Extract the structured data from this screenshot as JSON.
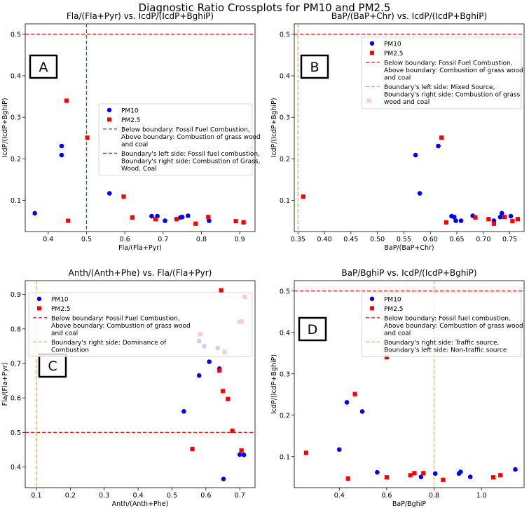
{
  "figure": {
    "title": "Diagnostic Ratio Crossplots for PM10 and PM2.5"
  },
  "colors": {
    "pm10": "#0000ff",
    "pm25": "#ff0000",
    "boundary_red": "#e8171d",
    "boundary_green": "#1a8a1a",
    "boundary_orange": "#f5a623"
  },
  "chart_data": [
    {
      "type": "scatter",
      "panel_label": "A",
      "title": "Fla/(Fla+Pyr) vs. IcdP/(IcdP+BghiP)",
      "xlabel": "Fla/(Fla+Pyr)",
      "ylabel": "IcdP/(IcdP+BghiP)",
      "xlim": [
        0.34,
        0.94
      ],
      "ylim": [
        0.025,
        0.525
      ],
      "xticks": [
        "0.4",
        "0.5",
        "0.6",
        "0.7",
        "0.8",
        "0.9"
      ],
      "xtick_values": [
        0.4,
        0.5,
        0.6,
        0.7,
        0.8,
        0.9
      ],
      "yticks": [
        "0.1",
        "0.2",
        "0.3",
        "0.4",
        "0.5"
      ],
      "ytick_values": [
        0.1,
        0.2,
        0.3,
        0.4,
        0.5
      ],
      "legend_position": "center-right",
      "series": [
        {
          "name": "PM10",
          "marker": "circle",
          "color": "#0000ff",
          "points": [
            [
              0.365,
              0.069
            ],
            [
              0.435,
              0.231
            ],
            [
              0.435,
              0.209
            ],
            [
              0.56,
              0.117
            ],
            [
              0.67,
              0.062
            ],
            [
              0.685,
              0.062
            ],
            [
              0.705,
              0.051
            ],
            [
              0.745,
              0.059
            ],
            [
              0.75,
              0.06
            ],
            [
              0.765,
              0.063
            ],
            [
              0.82,
              0.051
            ]
          ]
        },
        {
          "name": "PM2.5",
          "marker": "square",
          "color": "#ff0000",
          "points": [
            [
              0.448,
              0.34
            ],
            [
              0.452,
              0.051
            ],
            [
              0.502,
              0.251
            ],
            [
              0.597,
              0.109
            ],
            [
              0.62,
              0.059
            ],
            [
              0.68,
              0.055
            ],
            [
              0.735,
              0.055
            ],
            [
              0.785,
              0.044
            ],
            [
              0.818,
              0.06
            ],
            [
              0.89,
              0.05
            ],
            [
              0.91,
              0.047
            ]
          ]
        }
      ],
      "lines": [
        {
          "orientation": "horizontal",
          "value": 0.5,
          "color": "#e8171d",
          "label": "Below boundary: Fossil Fuel Combustion,\nAbove boundary: Combustion of grass wood\nand coal"
        },
        {
          "orientation": "vertical",
          "value": 0.5,
          "color": "#1a8a1a",
          "label": "Boundary's left side: Fossil fuel combustion,\nBoundary's right side: Combustion of Grass,\nWood, Coal"
        }
      ]
    },
    {
      "type": "scatter",
      "panel_label": "B",
      "title": "BaP/(BaP+Chr) vs. IcdP/(IcdP+BghiP)",
      "xlabel": "BaP/(BaP+Chr)",
      "ylabel": "IcdP/(IcdP+BghiP)",
      "xlim": [
        0.343,
        0.777
      ],
      "ylim": [
        0.025,
        0.525
      ],
      "xticks": [
        "0.35",
        "0.40",
        "0.45",
        "0.50",
        "0.55",
        "0.60",
        "0.65",
        "0.70",
        "0.75"
      ],
      "xtick_values": [
        0.35,
        0.4,
        0.45,
        0.5,
        0.55,
        0.6,
        0.65,
        0.7,
        0.75
      ],
      "yticks": [
        "0.1",
        "0.2",
        "0.3",
        "0.4",
        "0.5"
      ],
      "ytick_values": [
        0.1,
        0.2,
        0.3,
        0.4,
        0.5
      ],
      "legend_position": "upper-right",
      "series": [
        {
          "name": "PM10",
          "marker": "circle",
          "color": "#0000ff",
          "points": [
            [
              0.572,
              0.209
            ],
            [
              0.58,
              0.117
            ],
            [
              0.615,
              0.231
            ],
            [
              0.64,
              0.062
            ],
            [
              0.645,
              0.06
            ],
            [
              0.648,
              0.051
            ],
            [
              0.658,
              0.051
            ],
            [
              0.68,
              0.063
            ],
            [
              0.72,
              0.051
            ],
            [
              0.732,
              0.06
            ],
            [
              0.735,
              0.069
            ],
            [
              0.752,
              0.062
            ]
          ]
        },
        {
          "name": "PM2.5",
          "marker": "square",
          "color": "#ff0000",
          "points": [
            [
              0.36,
              0.109
            ],
            [
              0.484,
              0.34
            ],
            [
              0.621,
              0.251
            ],
            [
              0.63,
              0.047
            ],
            [
              0.685,
              0.059
            ],
            [
              0.71,
              0.055
            ],
            [
              0.72,
              0.044
            ],
            [
              0.74,
              0.06
            ],
            [
              0.755,
              0.05
            ],
            [
              0.765,
              0.055
            ]
          ]
        }
      ],
      "lines": [
        {
          "orientation": "horizontal",
          "value": 0.5,
          "color": "#e8171d",
          "label": "Below boundary: Fossil Fuel Combustion,\nAbove boundary: Combustion of grass wood\nand coal"
        },
        {
          "orientation": "vertical",
          "value": 0.35,
          "color": "#f5a623",
          "label": "Boundary's left side: Mixed Source,\nBoundary's right side: Combustion of grass\nwood and coal"
        }
      ]
    },
    {
      "type": "scatter",
      "panel_label": "C",
      "title": "Anth/(Anth+Phe) vs. Fla/(Fla+Pyr)",
      "xlabel": "Anth/(Anth+Phe)",
      "ylabel": "Fla/(Fla+Pyr)",
      "xlim": [
        0.067,
        0.745
      ],
      "ylim": [
        0.34,
        0.94
      ],
      "xticks": [
        "0.1",
        "0.2",
        "0.3",
        "0.4",
        "0.5",
        "0.6",
        "0.7"
      ],
      "xtick_values": [
        0.1,
        0.2,
        0.3,
        0.4,
        0.5,
        0.6,
        0.7
      ],
      "yticks": [
        "0.4",
        "0.5",
        "0.6",
        "0.7",
        "0.8",
        "0.9"
      ],
      "ytick_values": [
        0.4,
        0.5,
        0.6,
        0.7,
        0.8,
        0.9
      ],
      "legend_position": "upper-left",
      "series": [
        {
          "name": "PM10",
          "marker": "circle",
          "color": "#0000ff",
          "points": [
            [
              0.535,
              0.561
            ],
            [
              0.58,
              0.765
            ],
            [
              0.58,
              0.665
            ],
            [
              0.595,
              0.75
            ],
            [
              0.61,
              0.705
            ],
            [
              0.635,
              0.745
            ],
            [
              0.64,
              0.685
            ],
            [
              0.652,
              0.365
            ],
            [
              0.7,
              0.436
            ],
            [
              0.705,
              0.822
            ],
            [
              0.712,
              0.435
            ]
          ]
        },
        {
          "name": "PM2.5",
          "marker": "square",
          "color": "#ff0000",
          "points": [
            [
              0.56,
              0.452
            ],
            [
              0.583,
              0.785
            ],
            [
              0.64,
              0.68
            ],
            [
              0.645,
              0.912
            ],
            [
              0.65,
              0.62
            ],
            [
              0.655,
              0.733
            ],
            [
              0.665,
              0.597
            ],
            [
              0.678,
              0.505
            ],
            [
              0.7,
              0.82
            ],
            [
              0.705,
              0.448
            ],
            [
              0.715,
              0.893
            ]
          ]
        }
      ],
      "lines": [
        {
          "orientation": "horizontal",
          "value": 0.5,
          "color": "#e8171d",
          "label": "Below boundary: Fossil Fuel Combustion,\nAbove boundary: Combustion of grass wood\nand coal"
        },
        {
          "orientation": "vertical",
          "value": 0.1,
          "color": "#f5a623",
          "label": "Boundary's right side: Dominance of\nCombustion"
        }
      ]
    },
    {
      "type": "scatter",
      "panel_label": "D",
      "title": "BaP/BghiP vs. IcdP/(IcdP+BghiP)",
      "xlabel": "BaP/BghiP",
      "ylabel": "IcdP/(IcdP+BghiP)",
      "xlim": [
        0.21,
        1.18
      ],
      "ylim": [
        0.025,
        0.525
      ],
      "xticks": [
        "0.4",
        "0.6",
        "0.8",
        "1.0"
      ],
      "xtick_values": [
        0.4,
        0.6,
        0.8,
        1.0
      ],
      "yticks": [
        "0.1",
        "0.2",
        "0.3",
        "0.4",
        "0.5"
      ],
      "ytick_values": [
        0.1,
        0.2,
        0.3,
        0.4,
        0.5
      ],
      "legend_position": "upper-right",
      "series": [
        {
          "name": "PM10",
          "marker": "circle",
          "color": "#0000ff",
          "points": [
            [
              0.4,
              0.117
            ],
            [
              0.432,
              0.231
            ],
            [
              0.497,
              0.209
            ],
            [
              0.56,
              0.062
            ],
            [
              0.745,
              0.051
            ],
            [
              0.805,
              0.059
            ],
            [
              0.905,
              0.059
            ],
            [
              0.912,
              0.063
            ],
            [
              0.953,
              0.051
            ],
            [
              1.143,
              0.069
            ]
          ]
        },
        {
          "name": "PM2.5",
          "marker": "square",
          "color": "#ff0000",
          "points": [
            [
              0.26,
              0.109
            ],
            [
              0.437,
              0.047
            ],
            [
              0.466,
              0.251
            ],
            [
              0.6,
              0.34
            ],
            [
              0.6,
              0.05
            ],
            [
              0.7,
              0.055
            ],
            [
              0.717,
              0.06
            ],
            [
              0.755,
              0.06
            ],
            [
              0.838,
              0.044
            ],
            [
              1.05,
              0.05
            ],
            [
              1.08,
              0.055
            ]
          ]
        }
      ],
      "lines": [
        {
          "orientation": "horizontal",
          "value": 0.5,
          "color": "#e8171d",
          "label": "Below boundary: Fossil fuel combustion,\nAbove boundary: Combustion of grass wood\nand coal"
        },
        {
          "orientation": "vertical",
          "value": 0.8,
          "color": "#f5a623",
          "label": "Boundary's right side: Traffic source,\nBoundary's left side: Non-traffic source"
        }
      ]
    }
  ]
}
